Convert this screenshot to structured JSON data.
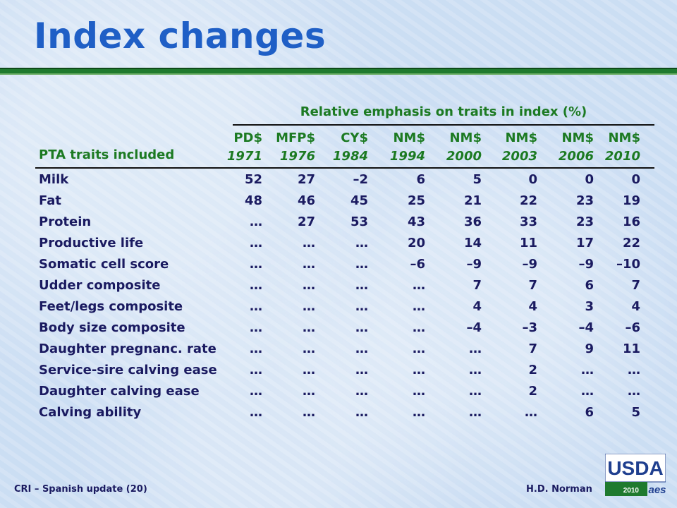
{
  "title": "Index changes",
  "table": {
    "group_header": "Relative emphasis on traits in index (%)",
    "traits_header": "PTA traits included",
    "columns": [
      {
        "name": "PD$",
        "year": "1971"
      },
      {
        "name": "MFP$",
        "year": "1976"
      },
      {
        "name": "CY$",
        "year": "1984"
      },
      {
        "name": "NM$",
        "year": "1994"
      },
      {
        "name": "NM$",
        "year": "2000"
      },
      {
        "name": "NM$",
        "year": "2003"
      },
      {
        "name": "NM$",
        "year": "2006"
      },
      {
        "name": "NM$",
        "year": "2010"
      }
    ],
    "rows": [
      {
        "trait": "Milk",
        "values": [
          "52",
          "27",
          "–2",
          "6",
          "5",
          "0",
          "0",
          "0"
        ]
      },
      {
        "trait": "Fat",
        "values": [
          "48",
          "46",
          "45",
          "25",
          "21",
          "22",
          "23",
          "19"
        ]
      },
      {
        "trait": "Protein",
        "values": [
          "…",
          "27",
          "53",
          "43",
          "36",
          "33",
          "23",
          "16"
        ]
      },
      {
        "trait": "Productive life",
        "values": [
          "…",
          "…",
          "…",
          "20",
          "14",
          "11",
          "17",
          "22"
        ]
      },
      {
        "trait": "Somatic cell score",
        "values": [
          "…",
          "…",
          "…",
          "–6",
          "–9",
          "–9",
          "–9",
          "–10"
        ]
      },
      {
        "trait": "Udder composite",
        "values": [
          "…",
          "…",
          "…",
          "…",
          "7",
          "7",
          "6",
          "7"
        ]
      },
      {
        "trait": "Feet/legs composite",
        "values": [
          "…",
          "…",
          "…",
          "…",
          "4",
          "4",
          "3",
          "4"
        ]
      },
      {
        "trait": "Body size composite",
        "values": [
          "…",
          "…",
          "…",
          "…",
          "–4",
          "–3",
          "–4",
          "–6"
        ]
      },
      {
        "trait": "Daughter pregnanc. rate",
        "values": [
          "…",
          "…",
          "…",
          "…",
          "…",
          "7",
          "9",
          "11"
        ]
      },
      {
        "trait": "Service-sire calving ease",
        "values": [
          "…",
          "…",
          "…",
          "…",
          "…",
          "2",
          "…",
          "…"
        ]
      },
      {
        "trait": "Daughter calving ease",
        "values": [
          "…",
          "…",
          "…",
          "…",
          "…",
          "2",
          "…",
          "…"
        ]
      },
      {
        "trait": "Calving ability",
        "values": [
          "…",
          "…",
          "…",
          "…",
          "…",
          "…",
          "6",
          "5"
        ]
      }
    ]
  },
  "footer": {
    "left": "CRI – Spanish update (20)",
    "right": "H.D. Norman"
  },
  "logo": {
    "text": "USDA",
    "year": "2010",
    "sub": "aes",
    "colors": {
      "green": "#1f7a2e",
      "blue": "#1f3f8f"
    }
  },
  "colors": {
    "title": "#1f5fc6",
    "header_green": "#1c7a22",
    "body_text": "#1a1a60",
    "bar_green": "#1f7a2e"
  }
}
